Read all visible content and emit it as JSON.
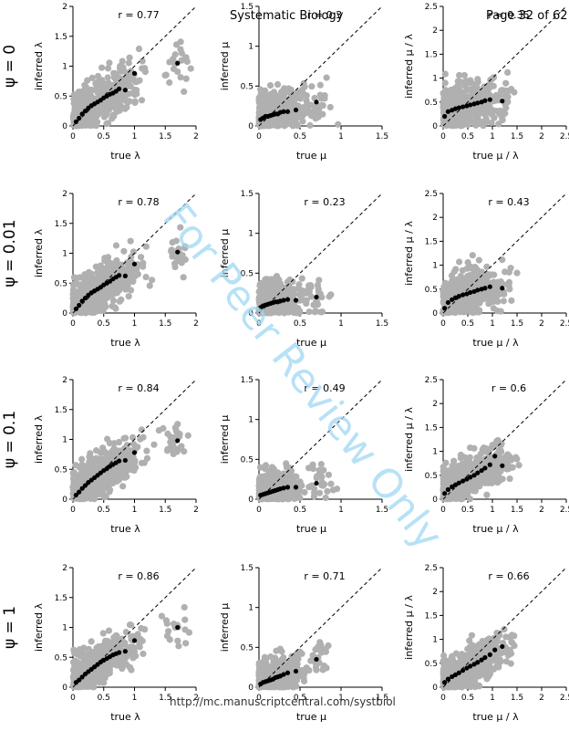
{
  "header": {
    "journal": "Systematic Biology",
    "page": "Page 32 of 62"
  },
  "footer_url": "http://mc.manuscriptcentral.com/systbiol",
  "watermark": "For Peer Review Only",
  "row_labels": [
    "ψ = 0",
    "ψ = 0.01",
    "ψ = 0.1",
    "ψ = 1"
  ],
  "colors": {
    "scenario_points": "#b0b0b0",
    "binned_points": "#000000"
  },
  "chart_data": [
    {
      "type": "scatter",
      "row": 0,
      "col": 0,
      "xlabel": "true λ",
      "ylabel": "inferred λ",
      "xlim": [
        0,
        2
      ],
      "ylim": [
        0,
        2
      ],
      "xticks": [
        "0",
        "0.5",
        "1",
        "1.5",
        "2"
      ],
      "yticks": [
        "0",
        "0.5",
        "1",
        "1.5",
        "2"
      ],
      "annotation": "r = 0.77",
      "identity_line": true,
      "series": [
        {
          "role": "binned",
          "x": [
            0.05,
            0.1,
            0.15,
            0.2,
            0.25,
            0.3,
            0.35,
            0.4,
            0.45,
            0.5,
            0.55,
            0.6,
            0.65,
            0.7,
            0.75,
            0.85,
            1.0,
            1.7
          ],
          "y": [
            0.07,
            0.13,
            0.2,
            0.25,
            0.3,
            0.34,
            0.37,
            0.4,
            0.43,
            0.47,
            0.5,
            0.53,
            0.55,
            0.58,
            0.62,
            0.6,
            0.88,
            1.05
          ]
        }
      ]
    },
    {
      "type": "scatter",
      "row": 0,
      "col": 1,
      "xlabel": "true μ",
      "ylabel": "inferred μ",
      "xlim": [
        0,
        1.5
      ],
      "ylim": [
        0,
        1.5
      ],
      "xticks": [
        "0",
        "0.5",
        "1",
        "1.5"
      ],
      "yticks": [
        "0",
        "0.5",
        "1",
        "1.5"
      ],
      "annotation": "r = 0.3",
      "identity_line": true,
      "series": [
        {
          "role": "binned",
          "x": [
            0.02,
            0.05,
            0.08,
            0.11,
            0.14,
            0.17,
            0.2,
            0.23,
            0.26,
            0.3,
            0.35,
            0.45,
            0.7
          ],
          "y": [
            0.08,
            0.1,
            0.12,
            0.12,
            0.13,
            0.14,
            0.15,
            0.15,
            0.17,
            0.18,
            0.18,
            0.2,
            0.3
          ]
        }
      ]
    },
    {
      "type": "scatter",
      "row": 0,
      "col": 2,
      "xlabel": "true μ / λ",
      "ylabel": "inferred μ / λ",
      "xlim": [
        0,
        2.5
      ],
      "ylim": [
        0,
        2.5
      ],
      "xticks": [
        "0",
        "0.5",
        "1",
        "1.5",
        "2",
        "2.5"
      ],
      "yticks": [
        "0",
        "0.5",
        "1",
        "1.5",
        "2",
        "2.5"
      ],
      "annotation": "r = 0.35",
      "identity_line": true,
      "series": [
        {
          "role": "binned",
          "x": [
            0.03,
            0.1,
            0.18,
            0.25,
            0.32,
            0.4,
            0.48,
            0.55,
            0.63,
            0.7,
            0.78,
            0.85,
            0.95,
            1.2
          ],
          "y": [
            0.2,
            0.3,
            0.33,
            0.36,
            0.38,
            0.4,
            0.42,
            0.44,
            0.46,
            0.48,
            0.5,
            0.53,
            0.55,
            0.52
          ]
        }
      ]
    },
    {
      "type": "scatter",
      "row": 1,
      "col": 0,
      "xlabel": "true λ",
      "ylabel": "inferred λ",
      "xlim": [
        0,
        2
      ],
      "ylim": [
        0,
        2
      ],
      "xticks": [
        "0",
        "0.5",
        "1",
        "1.5",
        "2"
      ],
      "yticks": [
        "0",
        "0.5",
        "1",
        "1.5",
        "2"
      ],
      "annotation": "r = 0.78",
      "identity_line": true,
      "series": [
        {
          "role": "binned",
          "x": [
            0.05,
            0.1,
            0.15,
            0.2,
            0.25,
            0.3,
            0.35,
            0.4,
            0.45,
            0.5,
            0.55,
            0.6,
            0.65,
            0.7,
            0.75,
            0.85,
            1.0,
            1.7
          ],
          "y": [
            0.07,
            0.13,
            0.2,
            0.25,
            0.3,
            0.34,
            0.37,
            0.4,
            0.43,
            0.47,
            0.5,
            0.53,
            0.57,
            0.6,
            0.63,
            0.62,
            0.82,
            1.02
          ]
        }
      ]
    },
    {
      "type": "scatter",
      "row": 1,
      "col": 1,
      "xlabel": "true μ",
      "ylabel": "inferred μ",
      "xlim": [
        0,
        1.5
      ],
      "ylim": [
        0,
        1.5
      ],
      "xticks": [
        "0",
        "0.5",
        "1",
        "1.5"
      ],
      "yticks": [
        "0",
        "0.5",
        "1",
        "1.5"
      ],
      "annotation": "r = 0.23",
      "identity_line": true,
      "series": [
        {
          "role": "binned",
          "x": [
            0.02,
            0.05,
            0.08,
            0.11,
            0.14,
            0.17,
            0.2,
            0.23,
            0.26,
            0.3,
            0.35,
            0.45,
            0.7
          ],
          "y": [
            0.07,
            0.09,
            0.1,
            0.11,
            0.12,
            0.13,
            0.14,
            0.14,
            0.15,
            0.16,
            0.17,
            0.16,
            0.2
          ]
        }
      ]
    },
    {
      "type": "scatter",
      "row": 1,
      "col": 2,
      "xlabel": "true μ / λ",
      "ylabel": "inferred μ / λ",
      "xlim": [
        0,
        2.5
      ],
      "ylim": [
        0,
        2.5
      ],
      "xticks": [
        "0",
        "0.5",
        "1",
        "1.5",
        "2",
        "2.5"
      ],
      "yticks": [
        "0",
        "0.5",
        "1",
        "1.5",
        "2",
        "2.5"
      ],
      "annotation": "r = 0.43",
      "identity_line": true,
      "series": [
        {
          "role": "binned",
          "x": [
            0.03,
            0.1,
            0.18,
            0.25,
            0.32,
            0.4,
            0.48,
            0.55,
            0.63,
            0.7,
            0.78,
            0.85,
            0.95,
            1.2
          ],
          "y": [
            0.1,
            0.22,
            0.28,
            0.32,
            0.35,
            0.38,
            0.4,
            0.43,
            0.45,
            0.48,
            0.5,
            0.52,
            0.55,
            0.52
          ]
        }
      ]
    },
    {
      "type": "scatter",
      "row": 2,
      "col": 0,
      "xlabel": "true λ",
      "ylabel": "inferred λ",
      "xlim": [
        0,
        2
      ],
      "ylim": [
        0,
        2
      ],
      "xticks": [
        "0",
        "0.5",
        "1",
        "1.5",
        "2"
      ],
      "yticks": [
        "0",
        "0.5",
        "1",
        "1.5",
        "2"
      ],
      "annotation": "r = 0.84",
      "identity_line": true,
      "series": [
        {
          "role": "binned",
          "x": [
            0.05,
            0.1,
            0.15,
            0.2,
            0.25,
            0.3,
            0.35,
            0.4,
            0.45,
            0.5,
            0.55,
            0.6,
            0.65,
            0.7,
            0.75,
            0.85,
            1.0,
            1.7
          ],
          "y": [
            0.07,
            0.12,
            0.18,
            0.23,
            0.28,
            0.32,
            0.36,
            0.4,
            0.44,
            0.48,
            0.51,
            0.55,
            0.58,
            0.61,
            0.64,
            0.65,
            0.78,
            0.98
          ]
        }
      ]
    },
    {
      "type": "scatter",
      "row": 2,
      "col": 1,
      "xlabel": "true μ",
      "ylabel": "inferred μ",
      "xlim": [
        0,
        1.5
      ],
      "ylim": [
        0,
        1.5
      ],
      "xticks": [
        "0",
        "0.5",
        "1",
        "1.5"
      ],
      "yticks": [
        "0",
        "0.5",
        "1",
        "1.5"
      ],
      "annotation": "r = 0.49",
      "identity_line": true,
      "series": [
        {
          "role": "binned",
          "x": [
            0.02,
            0.05,
            0.08,
            0.11,
            0.14,
            0.17,
            0.2,
            0.23,
            0.26,
            0.3,
            0.35,
            0.45,
            0.7
          ],
          "y": [
            0.05,
            0.06,
            0.07,
            0.08,
            0.09,
            0.1,
            0.11,
            0.12,
            0.13,
            0.14,
            0.15,
            0.15,
            0.2
          ]
        }
      ]
    },
    {
      "type": "scatter",
      "row": 2,
      "col": 2,
      "xlabel": "true μ / λ",
      "ylabel": "inferred μ / λ",
      "xlim": [
        0,
        2.5
      ],
      "ylim": [
        0,
        2.5
      ],
      "xticks": [
        "0",
        "0.5",
        "1",
        "1.5",
        "2",
        "2.5"
      ],
      "yticks": [
        "0",
        "0.5",
        "1",
        "1.5",
        "2",
        "2.5"
      ],
      "annotation": "r = 0.6",
      "identity_line": true,
      "series": [
        {
          "role": "binned",
          "x": [
            0.03,
            0.1,
            0.18,
            0.25,
            0.32,
            0.4,
            0.48,
            0.55,
            0.63,
            0.7,
            0.78,
            0.85,
            0.95,
            1.05,
            1.2
          ],
          "y": [
            0.12,
            0.2,
            0.26,
            0.3,
            0.34,
            0.38,
            0.42,
            0.46,
            0.5,
            0.55,
            0.6,
            0.65,
            0.72,
            0.9,
            0.7
          ]
        }
      ]
    },
    {
      "type": "scatter",
      "row": 3,
      "col": 0,
      "xlabel": "true λ",
      "ylabel": "inferred λ",
      "xlim": [
        0,
        2
      ],
      "ylim": [
        0,
        2
      ],
      "xticks": [
        "0",
        "0.5",
        "1",
        "1.5",
        "2"
      ],
      "yticks": [
        "0",
        "0.5",
        "1",
        "1.5",
        "2"
      ],
      "annotation": "r = 0.86",
      "identity_line": true,
      "series": [
        {
          "role": "binned",
          "x": [
            0.05,
            0.1,
            0.15,
            0.2,
            0.25,
            0.3,
            0.35,
            0.4,
            0.45,
            0.5,
            0.55,
            0.6,
            0.65,
            0.7,
            0.75,
            0.85,
            1.0,
            1.7
          ],
          "y": [
            0.08,
            0.12,
            0.17,
            0.22,
            0.26,
            0.3,
            0.34,
            0.38,
            0.42,
            0.45,
            0.48,
            0.51,
            0.54,
            0.56,
            0.58,
            0.6,
            0.78,
            1.0
          ]
        }
      ]
    },
    {
      "type": "scatter",
      "row": 3,
      "col": 1,
      "xlabel": "true μ",
      "ylabel": "inferred μ",
      "xlim": [
        0,
        1.5
      ],
      "ylim": [
        0,
        1.5
      ],
      "xticks": [
        "0",
        "0.5",
        "1",
        "1.5"
      ],
      "yticks": [
        "0",
        "0.5",
        "1",
        "1.5"
      ],
      "annotation": "r = 0.71",
      "identity_line": true,
      "series": [
        {
          "role": "binned",
          "x": [
            0.02,
            0.05,
            0.08,
            0.11,
            0.14,
            0.17,
            0.2,
            0.23,
            0.26,
            0.3,
            0.35,
            0.45,
            0.7
          ],
          "y": [
            0.04,
            0.06,
            0.07,
            0.08,
            0.09,
            0.1,
            0.12,
            0.13,
            0.14,
            0.16,
            0.18,
            0.2,
            0.35
          ]
        }
      ]
    },
    {
      "type": "scatter",
      "row": 3,
      "col": 2,
      "xlabel": "true μ / λ",
      "ylabel": "inferred μ / λ",
      "xlim": [
        0,
        2.5
      ],
      "ylim": [
        0,
        2.5
      ],
      "xticks": [
        "0",
        "0.5",
        "1",
        "1.5",
        "2",
        "2.5"
      ],
      "yticks": [
        "0",
        "0.5",
        "1",
        "1.5",
        "2",
        "2.5"
      ],
      "annotation": "r = 0.66",
      "identity_line": true,
      "series": [
        {
          "role": "binned",
          "x": [
            0.03,
            0.1,
            0.18,
            0.25,
            0.32,
            0.4,
            0.48,
            0.55,
            0.63,
            0.7,
            0.78,
            0.85,
            0.95,
            1.05,
            1.2
          ],
          "y": [
            0.1,
            0.17,
            0.22,
            0.26,
            0.3,
            0.35,
            0.4,
            0.44,
            0.48,
            0.52,
            0.57,
            0.62,
            0.68,
            0.78,
            0.85
          ]
        }
      ]
    }
  ]
}
